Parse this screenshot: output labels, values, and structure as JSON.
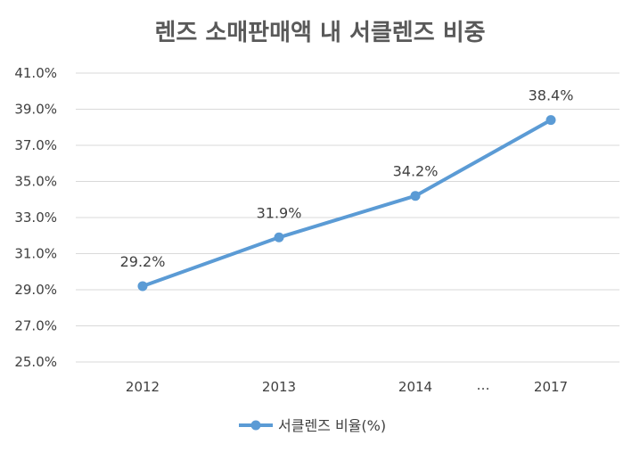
{
  "chart_data": {
    "type": "line",
    "title": "렌즈 소매판매액 내 서클렌즈 비중",
    "categories": [
      "2012",
      "2013",
      "2014",
      "2017"
    ],
    "axis_break_label": "…",
    "series": [
      {
        "name": "서클렌즈 비율(%)",
        "values": [
          29.2,
          31.9,
          34.2,
          38.4
        ],
        "data_labels": [
          "29.2%",
          "31.9%",
          "34.2%",
          "38.4%"
        ],
        "color": "#5b9bd5"
      }
    ],
    "y_ticks": [
      "25.0%",
      "27.0%",
      "29.0%",
      "31.0%",
      "33.0%",
      "35.0%",
      "37.0%",
      "39.0%",
      "41.0%"
    ],
    "ylim": [
      25,
      41
    ],
    "grid": true,
    "legend_position": "bottom"
  }
}
